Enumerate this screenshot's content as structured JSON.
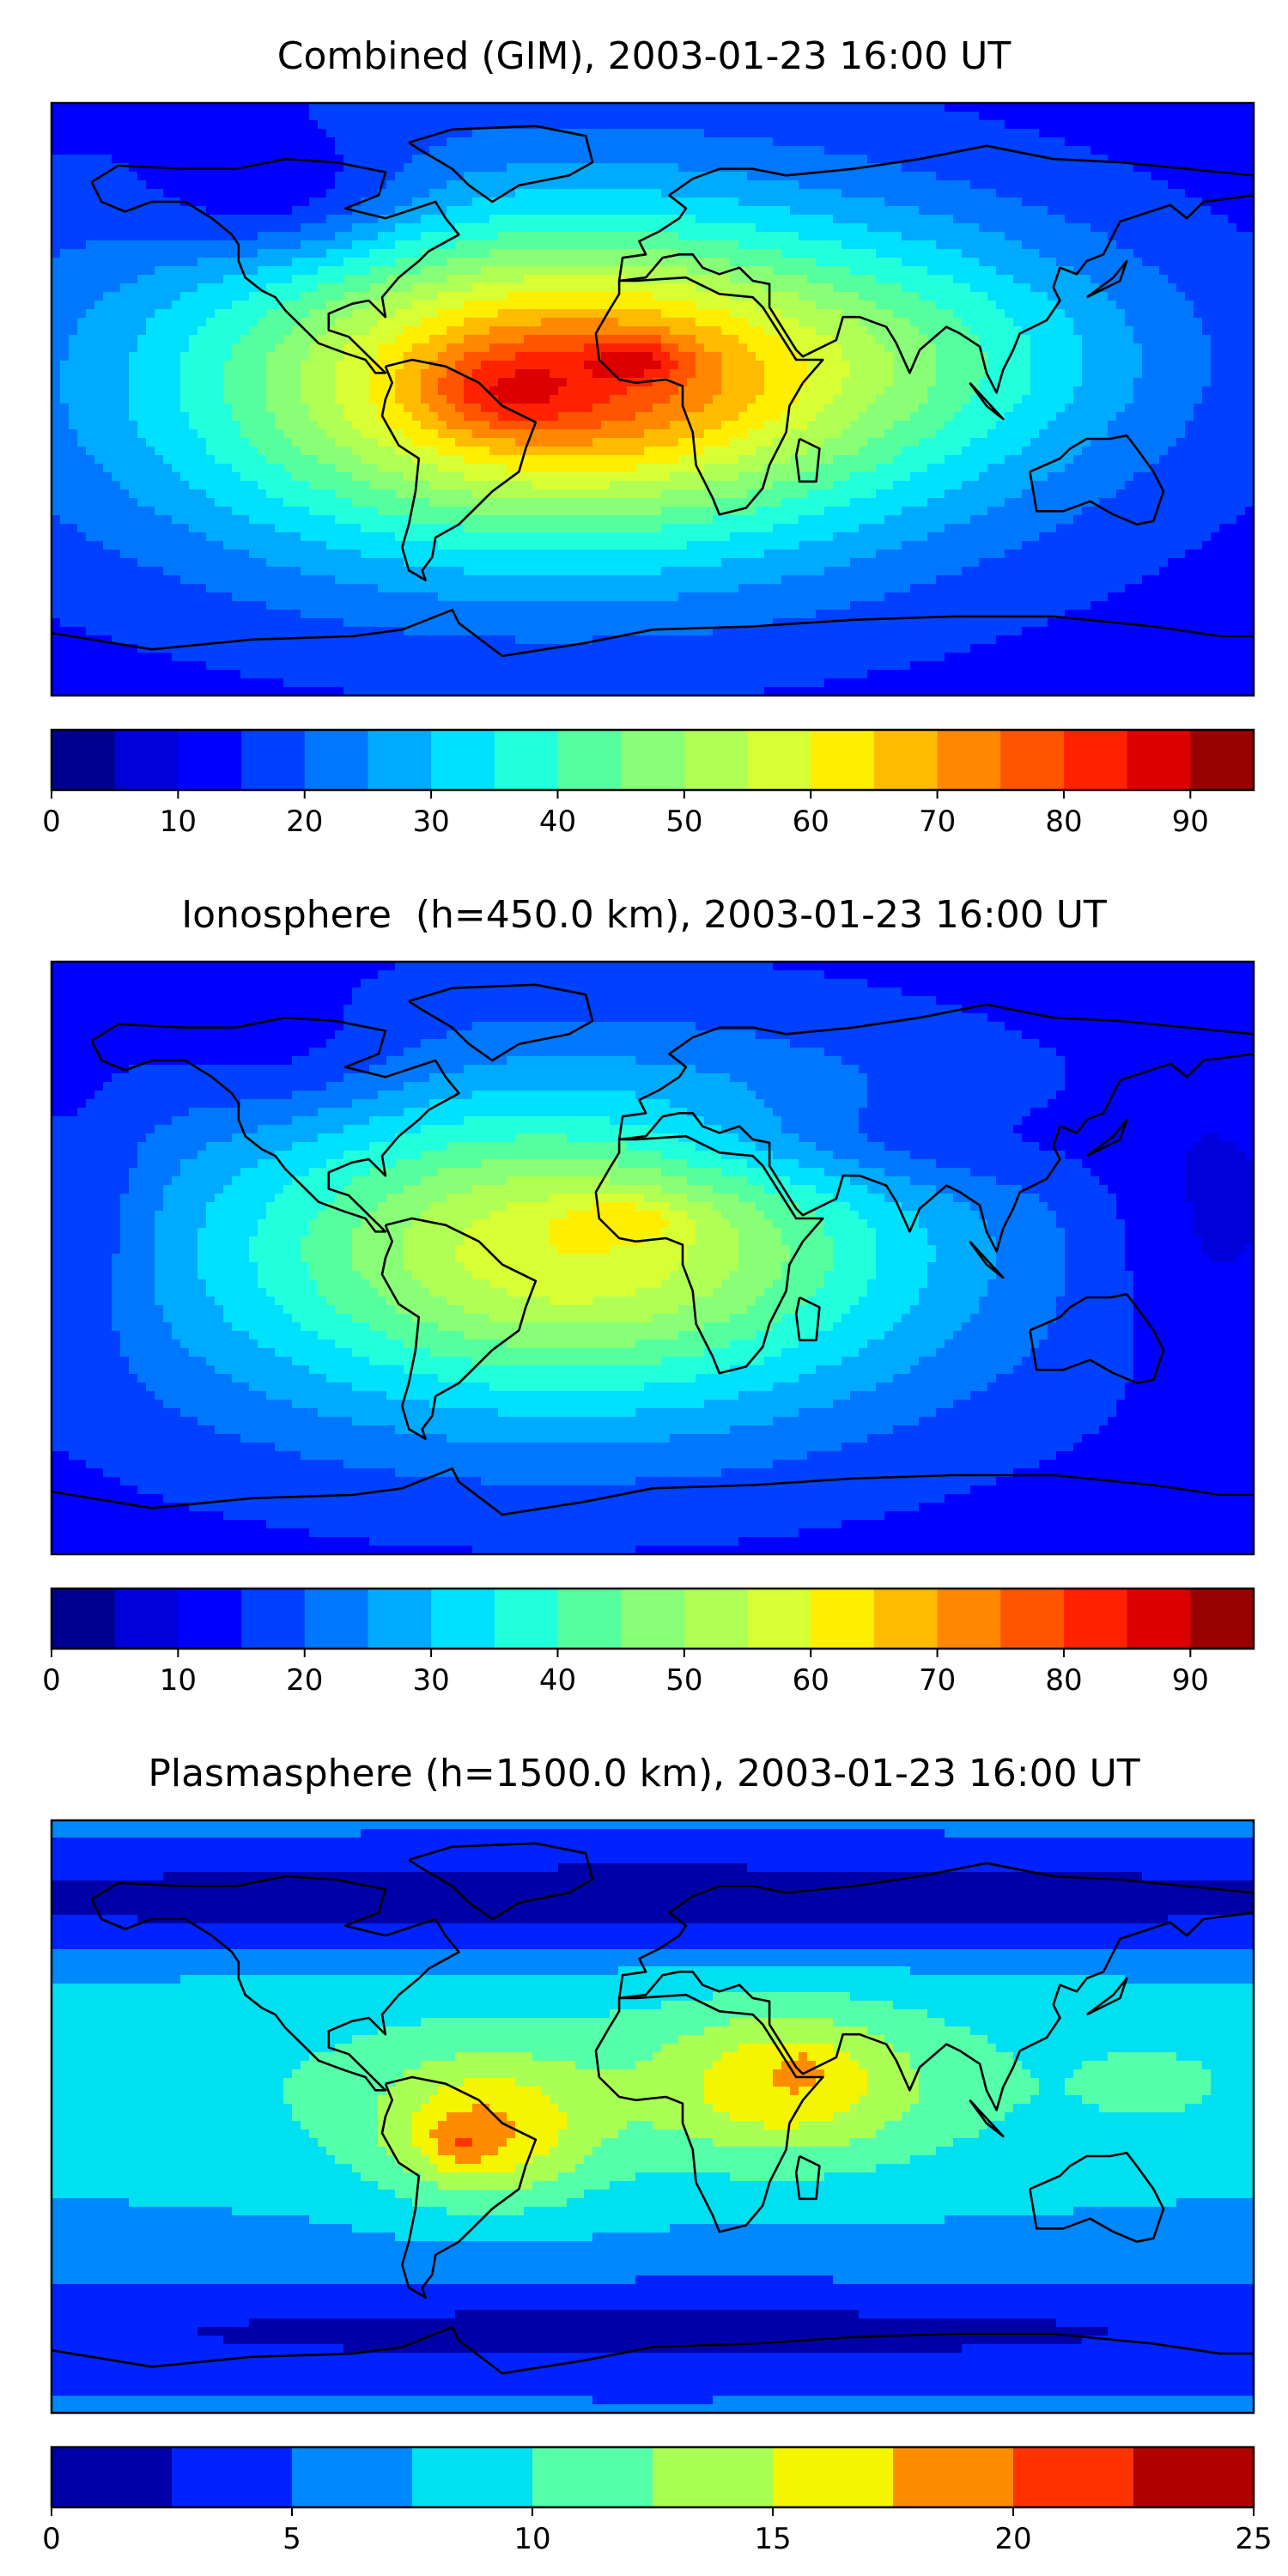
{
  "chart_data": [
    {
      "type": "heatmap",
      "title": "Combined (GIM), 2003-01-23 16:00 UT",
      "colorbar": {
        "levels": [
          0,
          5,
          10,
          15,
          20,
          25,
          30,
          35,
          40,
          45,
          50,
          55,
          60,
          65,
          70,
          75,
          80,
          85,
          90,
          95
        ],
        "tick_values": [
          0,
          10,
          20,
          30,
          40,
          50,
          60,
          70,
          80,
          90
        ],
        "tick_labels": [
          "0",
          "10",
          "20",
          "30",
          "40",
          "50",
          "60",
          "70",
          "80",
          "90"
        ],
        "colors": [
          "#00008f",
          "#0000d9",
          "#0000ff",
          "#0040ff",
          "#0077ff",
          "#00aaff",
          "#00e0ff",
          "#22ffdd",
          "#55ff9e",
          "#88ff77",
          "#b0ff55",
          "#d8ff33",
          "#ffee00",
          "#ffbb00",
          "#ff8800",
          "#ff5500",
          "#ff2200",
          "#dd0000",
          "#990000"
        ]
      },
      "blobs": [
        {
          "lon": -30,
          "lat": 5,
          "rlon": 140,
          "rlat": 62,
          "v": 34
        },
        {
          "lon": -25,
          "lat": 5,
          "rlon": 95,
          "rlat": 45,
          "v": 22
        },
        {
          "lon": -22,
          "lat": 6,
          "rlon": 62,
          "rlat": 28,
          "v": 12
        },
        {
          "lon": -45,
          "lat": 2,
          "rlon": 22,
          "rlat": 12,
          "v": 9
        },
        {
          "lon": -5,
          "lat": 12,
          "rlon": 14,
          "rlat": 6,
          "v": 12
        },
        {
          "lon": 90,
          "lat": 15,
          "rlon": 70,
          "rlat": 35,
          "v": 10
        },
        {
          "lon": -110,
          "lat": 60,
          "rlon": 40,
          "rlat": 20,
          "v": -12
        }
      ],
      "base_value": 12
    },
    {
      "type": "heatmap",
      "title": "Ionosphere  (h=450.0 km), 2003-01-23 16:00 UT",
      "colorbar": {
        "levels": [
          0,
          5,
          10,
          15,
          20,
          25,
          30,
          35,
          40,
          45,
          50,
          55,
          60,
          65,
          70,
          75,
          80,
          85,
          90,
          95
        ],
        "tick_values": [
          0,
          10,
          20,
          30,
          40,
          50,
          60,
          70,
          80,
          90
        ],
        "tick_labels": [
          "0",
          "10",
          "20",
          "30",
          "40",
          "50",
          "60",
          "70",
          "80",
          "90"
        ],
        "colors": [
          "#00008f",
          "#0000d9",
          "#0000ff",
          "#0040ff",
          "#0077ff",
          "#00aaff",
          "#00e0ff",
          "#22ffdd",
          "#55ff9e",
          "#88ff77",
          "#b0ff55",
          "#d8ff33",
          "#ffee00",
          "#ffbb00",
          "#ff8800",
          "#ff5500",
          "#ff2200",
          "#dd0000",
          "#990000"
        ]
      },
      "blobs": [
        {
          "lon": -30,
          "lat": 2,
          "rlon": 135,
          "rlat": 60,
          "v": 30
        },
        {
          "lon": -20,
          "lat": 3,
          "rlon": 80,
          "rlat": 38,
          "v": 18
        },
        {
          "lon": -8,
          "lat": 12,
          "rlon": 18,
          "rlat": 6,
          "v": 8
        },
        {
          "lon": 60,
          "lat": 35,
          "rlon": 70,
          "rlat": 15,
          "v": -8
        },
        {
          "lon": 165,
          "lat": 10,
          "rlon": 30,
          "rlat": 40,
          "v": -6
        },
        {
          "lon": -170,
          "lat": 10,
          "rlon": 20,
          "rlat": 40,
          "v": -6
        },
        {
          "lon": -110,
          "lat": 60,
          "rlon": 40,
          "rlat": 20,
          "v": -6
        }
      ],
      "base_value": 12
    },
    {
      "type": "heatmap",
      "title": "Plasmasphere (h=1500.0 km), 2003-01-23 16:00 UT",
      "colorbar": {
        "levels": [
          0,
          2.5,
          5,
          7.5,
          10,
          12.5,
          15,
          17.5,
          20,
          22.5,
          25
        ],
        "tick_values": [
          0,
          5,
          10,
          15,
          20,
          25
        ],
        "tick_labels": [
          "0",
          "5",
          "10",
          "15",
          "20",
          "25"
        ],
        "colors": [
          "#0000a8",
          "#0022ff",
          "#0088ff",
          "#00e0f0",
          "#55ffaa",
          "#aaff55",
          "#f5f500",
          "#ff8c00",
          "#ff3300",
          "#b00000"
        ]
      },
      "blobs": [
        {
          "lon": 0,
          "lat": 10,
          "rlon": 300,
          "rlat": 45,
          "v": 5
        },
        {
          "lon": -50,
          "lat": -5,
          "rlon": 32,
          "rlat": 22,
          "v": 8
        },
        {
          "lon": -58,
          "lat": -8,
          "rlon": 10,
          "rlat": 7,
          "v": 3
        },
        {
          "lon": 40,
          "lat": 10,
          "rlon": 38,
          "rlat": 22,
          "v": 7
        },
        {
          "lon": 45,
          "lat": 15,
          "rlon": 6,
          "rlat": 5,
          "v": 2
        },
        {
          "lon": 150,
          "lat": 10,
          "rlon": 18,
          "rlat": 10,
          "v": 2
        },
        {
          "lon": 0,
          "lat": 65,
          "rlon": 300,
          "rlat": 15,
          "v": -6
        },
        {
          "lon": 0,
          "lat": -65,
          "rlon": 300,
          "rlat": 15,
          "v": -4
        }
      ],
      "base_value": 5.5
    }
  ]
}
